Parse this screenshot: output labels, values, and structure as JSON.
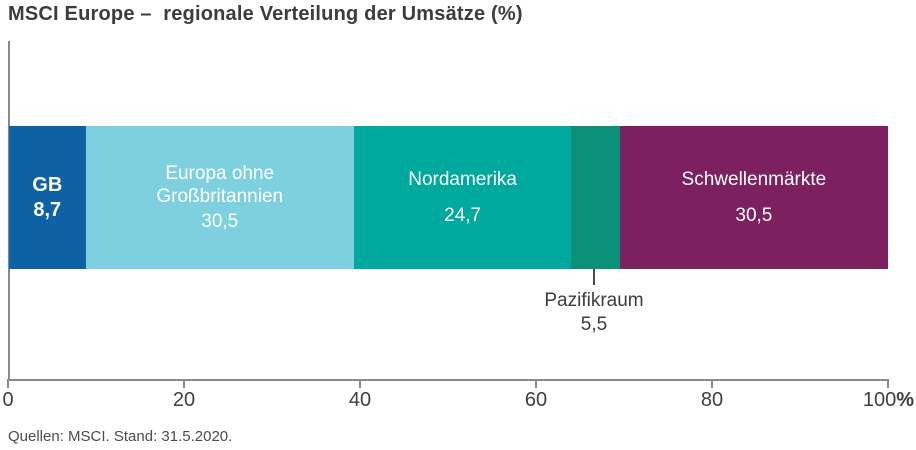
{
  "title": "MSCI Europe –  regionale Verteilung der Umsätze (%)",
  "source": "Quellen: MSCI. Stand: 31.5.2020.",
  "colors": {
    "title_text": "#3c3c3b",
    "axis_line": "#8a8a8a",
    "segment_text": "#ffffff",
    "gb_blue": "#0e61a5",
    "europe_light_blue": "#7ed0de",
    "north_america_teal": "#00a99d",
    "pacific_green": "#0c9077",
    "emerging_purple": "#7c2060"
  },
  "chart_data": {
    "type": "bar",
    "subtype": "horizontal-stacked-single-bar",
    "title": "MSCI Europe – regionale Verteilung der Umsätze (%)",
    "unit": "%",
    "xlim": [
      0,
      100
    ],
    "x_ticks": [
      "0",
      "20",
      "40",
      "60",
      "80",
      "100"
    ],
    "x_tick_percent_suffix": "%",
    "grid": false,
    "legend": false,
    "segments": [
      {
        "label": "GB",
        "value": 8.7,
        "value_label": "8,7",
        "color": "#0e61a5",
        "label_position": "inside"
      },
      {
        "label": "Europa ohne Großbritannien",
        "value": 30.5,
        "value_label": "30,5",
        "color": "#7ed0de",
        "label_position": "inside"
      },
      {
        "label": "Nordamerika",
        "value": 24.7,
        "value_label": "24,7",
        "color": "#00a99d",
        "label_position": "inside"
      },
      {
        "label": "Pazifikraum",
        "value": 5.5,
        "value_label": "5,5",
        "color": "#0c9077",
        "label_position": "below"
      },
      {
        "label": "Schwellenmärkte",
        "value": 30.5,
        "value_label": "30,5",
        "color": "#7c2060",
        "label_position": "inside"
      }
    ]
  }
}
